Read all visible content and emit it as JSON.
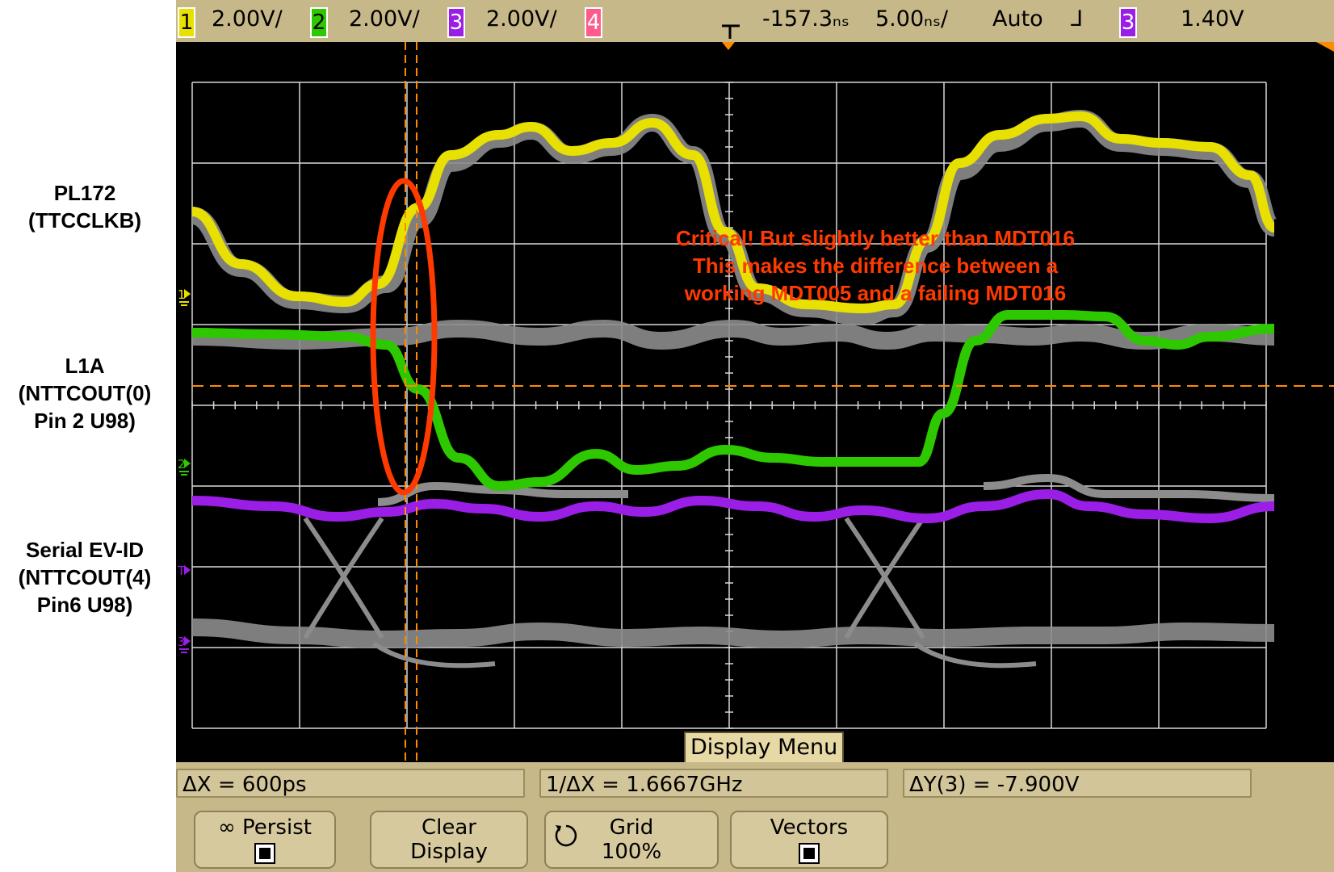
{
  "side_labels": {
    "pl172": [
      "PL172",
      "(TTCCLKB)"
    ],
    "l1a": [
      "L1A",
      "(NTTCOUT(0)",
      "Pin 2 U98)"
    ],
    "serial": [
      "Serial EV-ID",
      "(NTTCOUT(4)",
      "Pin6 U98)"
    ]
  },
  "topbar": {
    "ch1_num": "1",
    "ch1_scale": "2.00V/",
    "ch2_num": "2",
    "ch2_scale": "2.00V/",
    "ch3_num": "3",
    "ch3_scale": "2.00V/",
    "ch4_num": "4",
    "delay": "-157.3ₙₛ",
    "timebase": "5.00ₙₛ/",
    "trigger_mode": "Auto",
    "trigger_slope": "⅃",
    "trigger_source": "3",
    "trigger_level": "1.40V"
  },
  "annotation": {
    "line1": "Critical! But slightly better than MDT016",
    "line2": "This makes the difference between a",
    "line3": "working MDT005 and a failing MDT016"
  },
  "markers": {
    "ch1": "1",
    "ch2": "2",
    "ch3": "3",
    "trigger": "T"
  },
  "display_menu": "Display Menu",
  "readouts": {
    "delta_x": "ΔX = 600ps",
    "inv_delta_x": "1/ΔX = 1.6667GHz",
    "delta_y": "ΔY(3) = -7.900V"
  },
  "softkeys": {
    "persist": "∞ Persist",
    "clear_line1": "Clear",
    "clear_line2": "Display",
    "grid_line1": "Grid",
    "grid_line2": "100%",
    "vectors": "Vectors"
  },
  "colors": {
    "ch1": "#e8e000",
    "ch2": "#2ec800",
    "ch3": "#9a1ee6",
    "ch4": "#ff5a8c",
    "reference": "#8c8c8c",
    "cursor": "#ff8a00",
    "annotation": "#ff3a00",
    "bezel": "#c6b888"
  }
}
